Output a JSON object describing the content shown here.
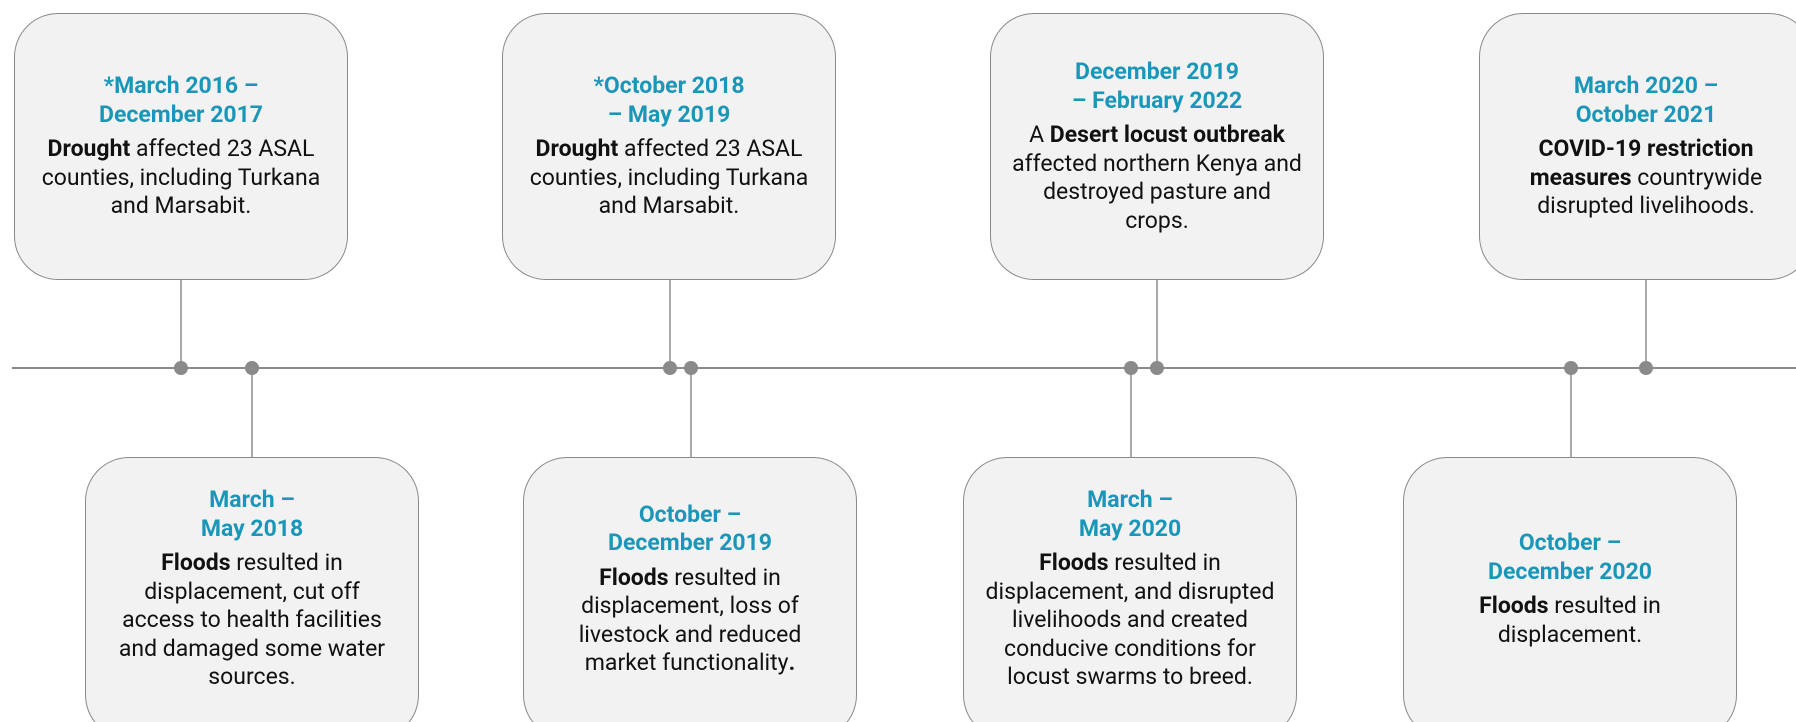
{
  "events": [
    {
      "date": [
        "*March 2016 –",
        "December 2017"
      ],
      "description": [
        {
          "text": "Drought",
          "bold": true
        },
        {
          "text": " affected 23 ASAL counties, including Turkana and Marsabit."
        }
      ]
    },
    {
      "date": [
        "March –",
        "May 2018"
      ],
      "description": [
        {
          "text": "Floods",
          "bold": true
        },
        {
          "text": " resulted in displacement, cut off access to health facilities and damaged some water sources."
        }
      ]
    },
    {
      "date": [
        "*October 2018",
        "– May 2019"
      ],
      "description": [
        {
          "text": "Drought",
          "bold": true
        },
        {
          "text": " affected 23 ASAL counties, including Turkana and Marsabit."
        }
      ]
    },
    {
      "date": [
        "October –",
        "December 2019"
      ],
      "description": [
        {
          "text": "Floods",
          "bold": true
        },
        {
          "text": " resulted in displacement, loss of livestock and reduced market functionality"
        },
        {
          "text": ".",
          "bold": true
        }
      ]
    },
    {
      "date": [
        "December 2019",
        "– February 2022"
      ],
      "description": [
        {
          "text": "A "
        },
        {
          "text": "Desert locust outbreak",
          "bold": true
        },
        {
          "text": " affected northern Kenya and destroyed pasture and crops."
        }
      ]
    },
    {
      "date": [
        "March –",
        "May 2020"
      ],
      "description": [
        {
          "text": "Floods",
          "bold": true
        },
        {
          "text": " resulted in displacement, and disrupted livelihoods and created conducive conditions for locust swarms to breed."
        }
      ]
    },
    {
      "date": [
        "March 2020 –",
        "October 2021"
      ],
      "description": [
        {
          "text": "COVID-19 restriction measures",
          "bold": true
        },
        {
          "text": " countrywide disrupted livelihoods."
        }
      ]
    },
    {
      "date": [
        "October –",
        "December 2020"
      ],
      "description": [
        {
          "text": "Floods",
          "bold": true
        },
        {
          "text": " resulted in displacement."
        }
      ]
    }
  ]
}
